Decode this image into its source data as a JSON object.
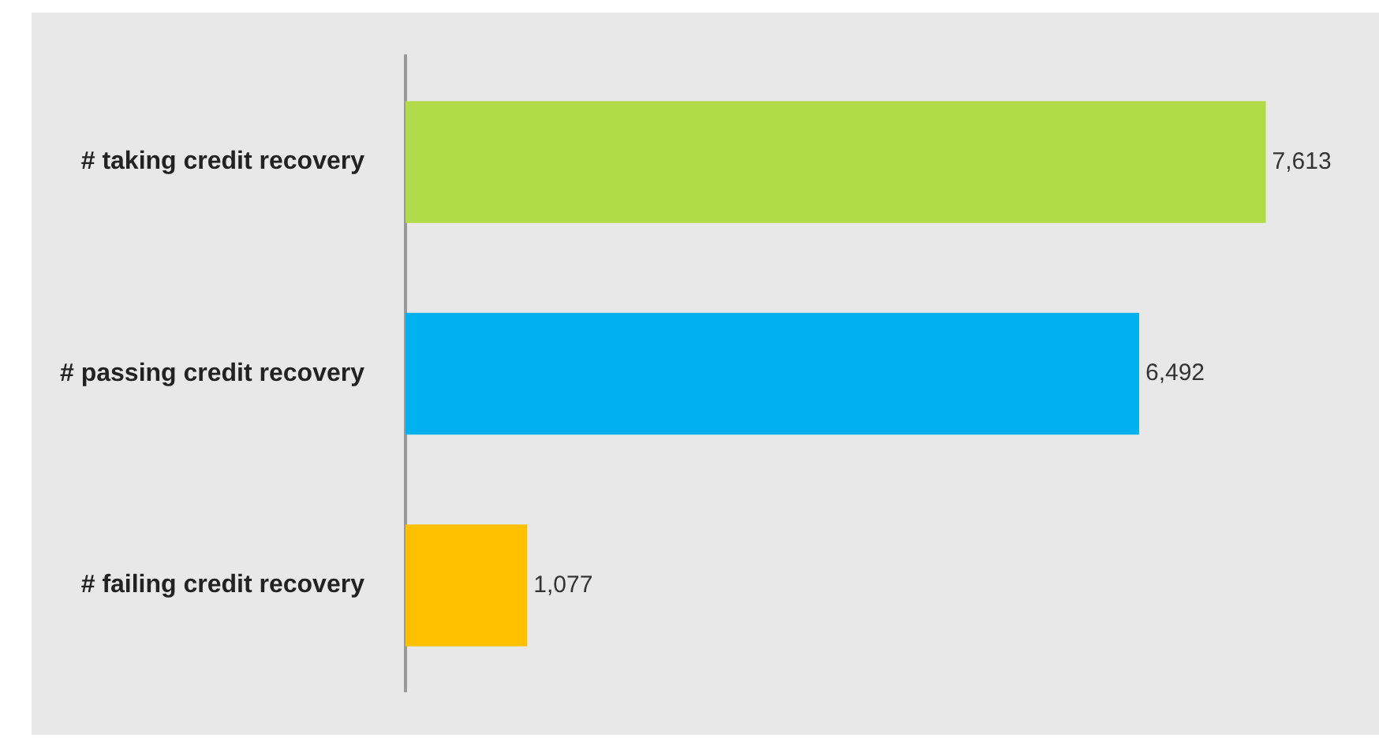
{
  "chart_data": {
    "type": "bar",
    "orientation": "horizontal",
    "categories": [
      "# taking credit recovery",
      "# passing credit recovery",
      "# failing credit recovery"
    ],
    "values": [
      7613,
      6492,
      1077
    ],
    "colors": [
      "#b2db4a",
      "#00b0ef",
      "#ffc000"
    ],
    "value_labels": [
      "7,613",
      "6,492",
      "1,077"
    ],
    "legend": false
  }
}
